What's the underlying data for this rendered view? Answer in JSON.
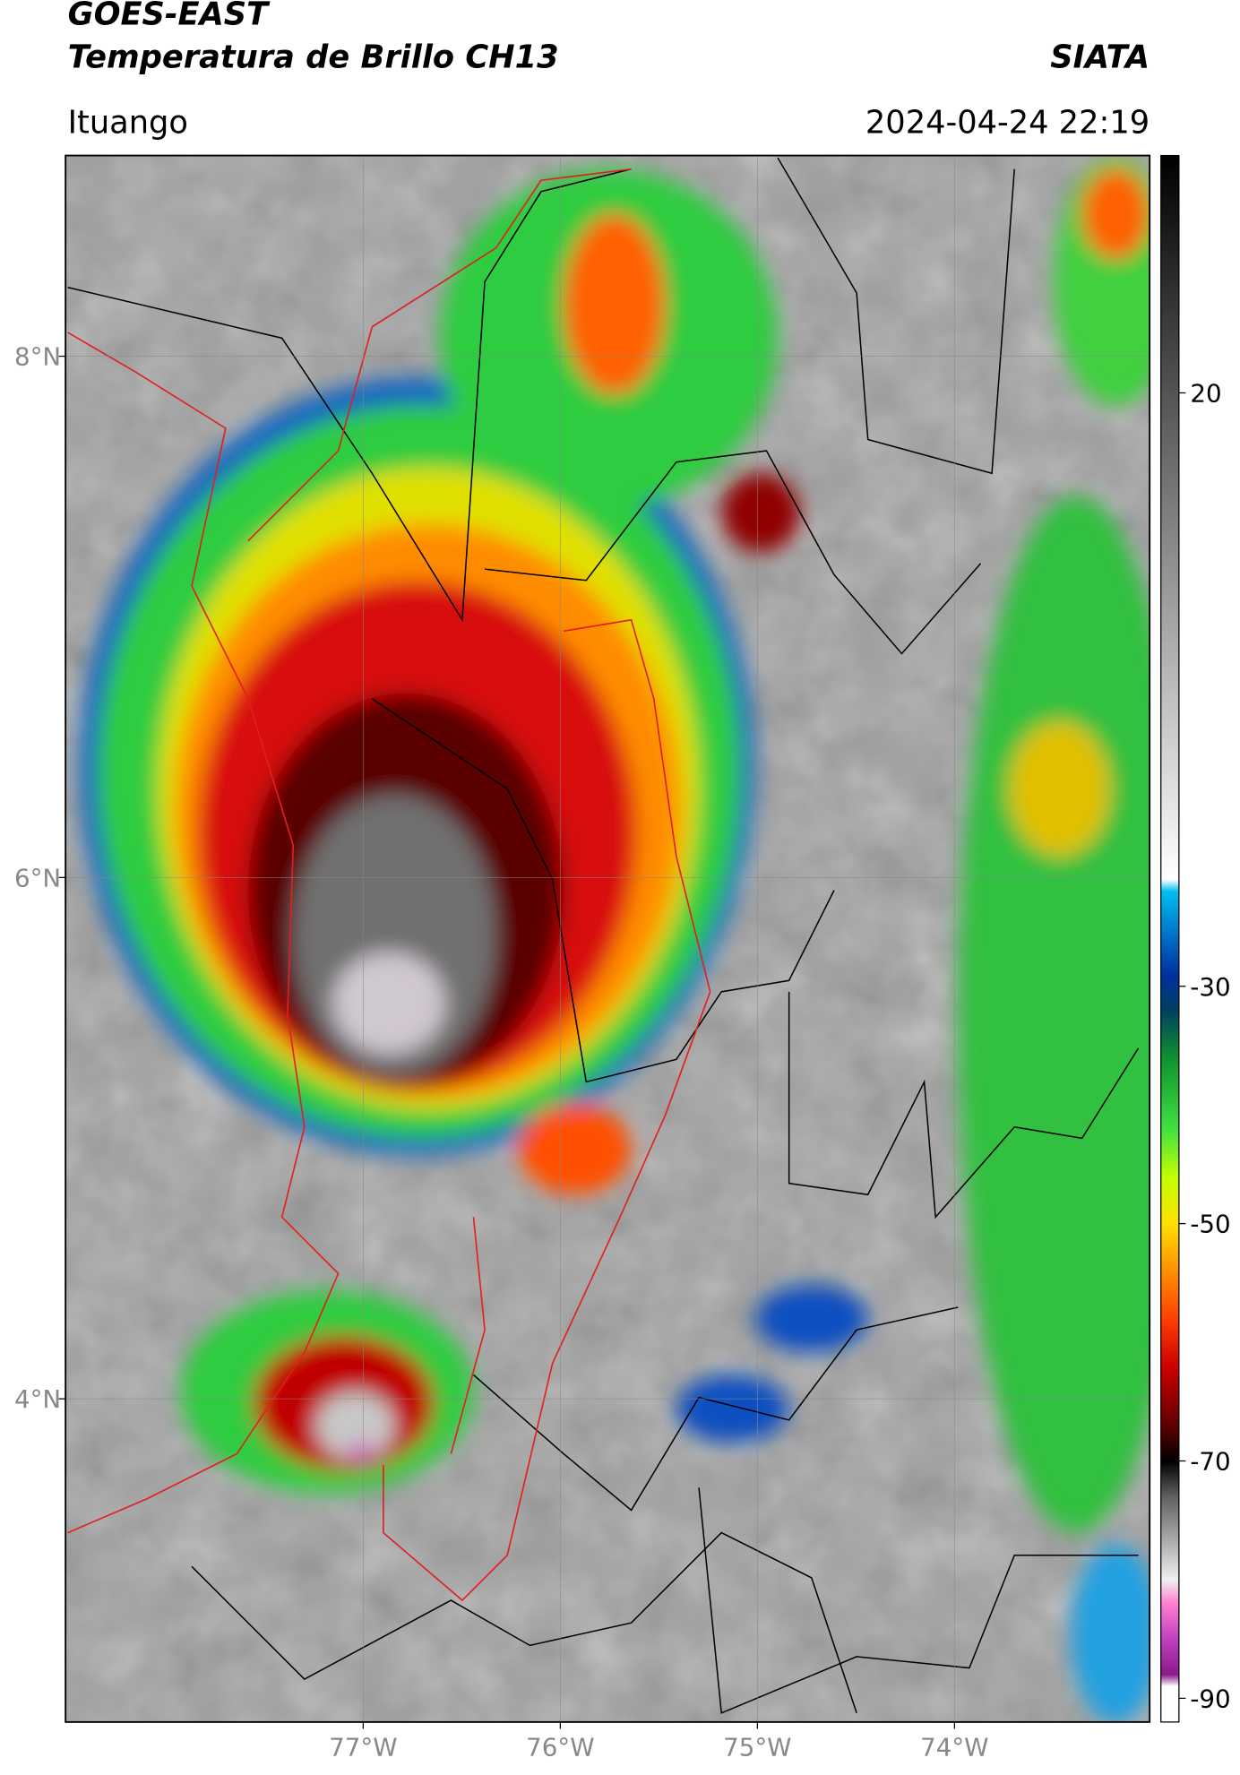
{
  "chart_data": {
    "type": "map",
    "title": "GOES-EAST",
    "subtitle": "Temperatura de Brillo CH13",
    "source": "SIATA",
    "location": "Ituango",
    "datetime": "2024-04-24 22:19",
    "xlim": [
      -78.51,
      -73.01
    ],
    "ylim": [
      2.76,
      8.77
    ],
    "xticks": [
      {
        "value": -77,
        "label": "77°W"
      },
      {
        "value": -76,
        "label": "76°W"
      },
      {
        "value": -75,
        "label": "75°W"
      },
      {
        "value": -74,
        "label": "74°W"
      }
    ],
    "yticks": [
      {
        "value": 8,
        "label": "8°N"
      },
      {
        "value": 6,
        "label": "6°N"
      },
      {
        "value": 4,
        "label": "4°N"
      }
    ],
    "grid": true,
    "colorbar": {
      "lim": [
        -92,
        40
      ],
      "ticks": [
        20,
        -30,
        -50,
        -70,
        -90
      ],
      "stops": [
        {
          "value": -92,
          "color": "#ffffff"
        },
        {
          "value": -89,
          "color": "#ffffff"
        },
        {
          "value": -88,
          "color": "#8b1a8b"
        },
        {
          "value": -85,
          "color": "#c040c0"
        },
        {
          "value": -82,
          "color": "#ff80d0"
        },
        {
          "value": -80,
          "color": "#f0f0f0"
        },
        {
          "value": -77,
          "color": "#b0b0b0"
        },
        {
          "value": -73,
          "color": "#606060"
        },
        {
          "value": -70,
          "color": "#000000"
        },
        {
          "value": -67,
          "color": "#600000"
        },
        {
          "value": -62,
          "color": "#d00000"
        },
        {
          "value": -58,
          "color": "#ff4000"
        },
        {
          "value": -54,
          "color": "#ff9000"
        },
        {
          "value": -50,
          "color": "#ffe000"
        },
        {
          "value": -46,
          "color": "#c0ff00"
        },
        {
          "value": -42,
          "color": "#40e040"
        },
        {
          "value": -36,
          "color": "#109030"
        },
        {
          "value": -32,
          "color": "#004060"
        },
        {
          "value": -29,
          "color": "#0030a0"
        },
        {
          "value": -25,
          "color": "#0080d0"
        },
        {
          "value": -22,
          "color": "#00c0f0"
        },
        {
          "value": -21,
          "color": "#ffffff"
        },
        {
          "value": 40,
          "color": "#000000"
        }
      ]
    }
  }
}
